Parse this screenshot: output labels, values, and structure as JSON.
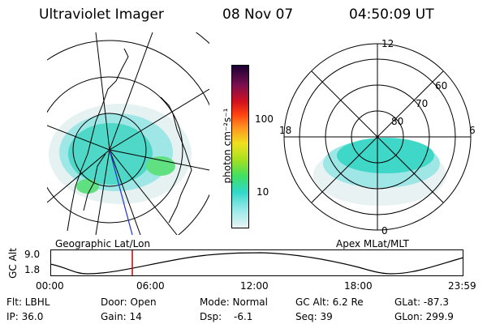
{
  "header": {
    "instrument": "Ultraviolet Imager",
    "date": "08 Nov 07",
    "time": "04:50:09 UT"
  },
  "geo_panel": {
    "label": "Geographic Lat/Lon"
  },
  "mag_panel": {
    "label": "Apex MLat/MLT",
    "hour_labels": {
      "top": "12",
      "right": "6",
      "bottom": "0",
      "left": "18"
    },
    "lat_labels": [
      "60",
      "70",
      "80"
    ]
  },
  "colorbar": {
    "unit_label": "photon cm⁻²s⁻¹",
    "tick_labels": [
      "100",
      "10"
    ],
    "colors": [
      "#1a0033",
      "#7a1050",
      "#d01020",
      "#ff4010",
      "#ff9020",
      "#f0e020",
      "#a8e020",
      "#40e060",
      "#30d8c8",
      "#90e8e8",
      "#e8f4f4"
    ]
  },
  "altitude_plot": {
    "axis_label": "GC Alt",
    "y_ticks": [
      "9.0",
      "1.8"
    ],
    "x_ticks": [
      "00:00",
      "06:00",
      "12:00",
      "18:00",
      "23:59"
    ],
    "marker_color": "#cc0000"
  },
  "info_fields": {
    "flt": "Flt: LBHL",
    "ip": "IP: 36.0",
    "door": "Door: Open",
    "gain": "Gain: 14",
    "mode": "Mode: Normal",
    "dsp_label": "Dsp:",
    "dsp_value": "-6.1",
    "gc_alt": "GC Alt: 6.2 Re",
    "seq": "Seq: 39",
    "glat": "GLat: -87.3",
    "glon": "GLon: 299.9"
  }
}
